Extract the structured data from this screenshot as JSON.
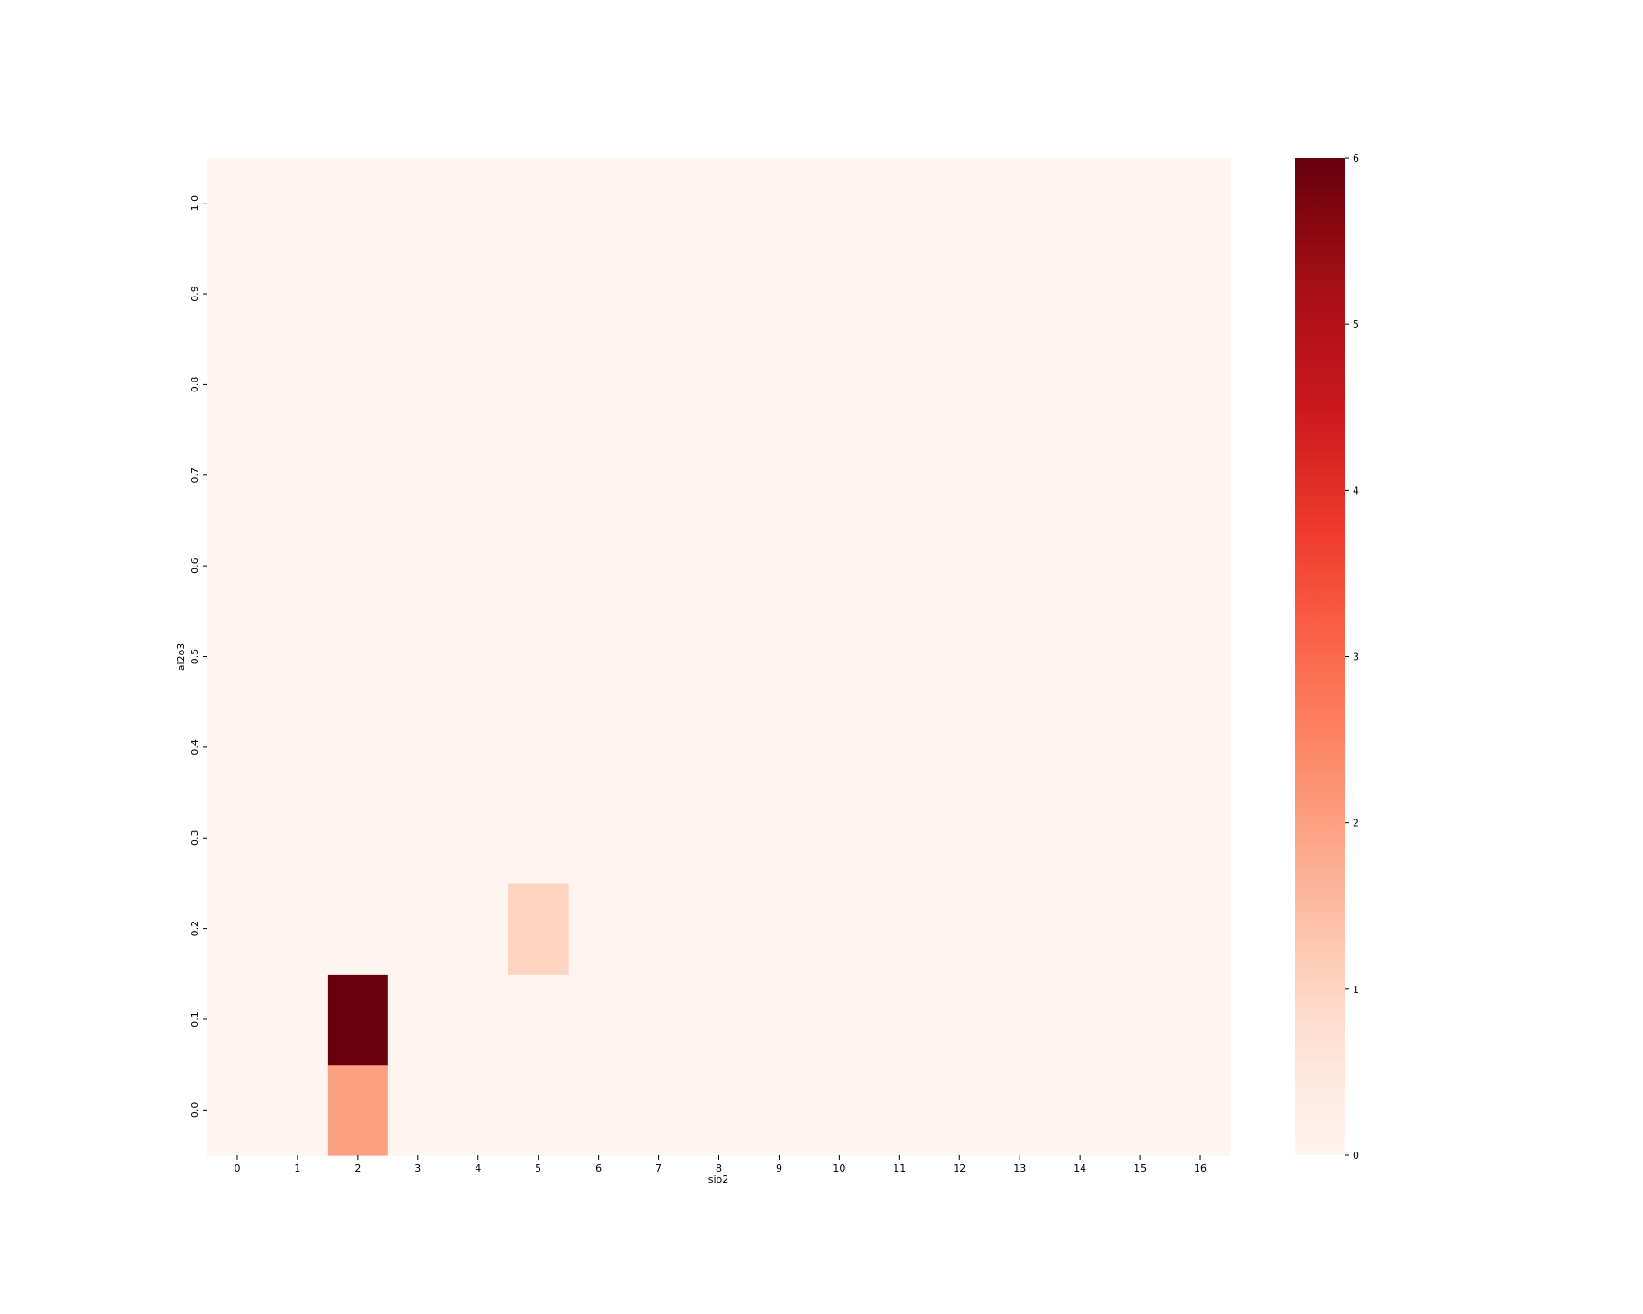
{
  "chart_data": {
    "type": "heatmap",
    "title": "",
    "xlabel": "sio2",
    "ylabel": "al2o3",
    "x_ticks": [
      "0",
      "1",
      "2",
      "3",
      "4",
      "5",
      "6",
      "7",
      "8",
      "9",
      "10",
      "11",
      "12",
      "13",
      "14",
      "15",
      "16"
    ],
    "y_ticks": [
      "0.0",
      "0.1",
      "0.2",
      "0.3",
      "0.4",
      "0.5",
      "0.6",
      "0.7",
      "0.8",
      "0.9",
      "1.0"
    ],
    "cells": [
      {
        "x": 2,
        "y": 0.0,
        "value": 2
      },
      {
        "x": 2,
        "y": 0.1,
        "value": 6
      },
      {
        "x": 5,
        "y": 0.2,
        "value": 1
      }
    ],
    "default_value": 0,
    "colorbar": {
      "min": 0,
      "max": 6,
      "ticks": [
        "0",
        "1",
        "2",
        "3",
        "4",
        "5",
        "6"
      ],
      "colormap": "Reds",
      "stops": [
        "#fff5f0",
        "#fee0d2",
        "#fcbba1",
        "#fc9272",
        "#fb6a4a",
        "#ef3b2c",
        "#cb181d",
        "#a50f15",
        "#67000d"
      ]
    },
    "grid": false,
    "legend": "colorbar-right"
  }
}
